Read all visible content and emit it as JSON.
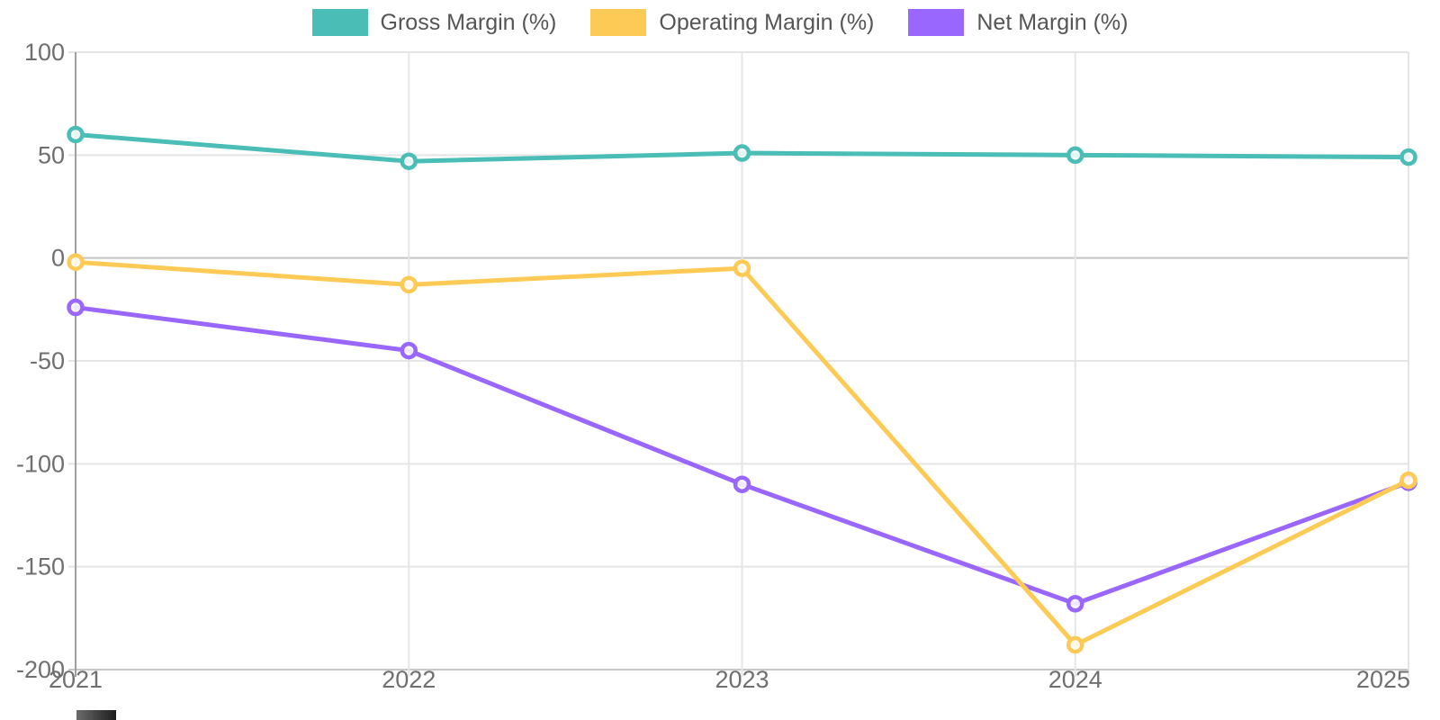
{
  "chart_data": {
    "type": "line",
    "x": [
      "2021",
      "2022",
      "2023",
      "2024",
      "2025"
    ],
    "series": [
      {
        "name": "Gross Margin (%)",
        "color": "#4bbdb7",
        "values": [
          60,
          47,
          51,
          50,
          49
        ]
      },
      {
        "name": "Operating Margin (%)",
        "color": "#fdcb55",
        "values": [
          -2,
          -13,
          -5,
          -188,
          -108
        ]
      },
      {
        "name": "Net Margin (%)",
        "color": "#9966fe",
        "values": [
          -24,
          -45,
          -110,
          -168,
          -109
        ]
      }
    ],
    "yticks": [
      100,
      50,
      0,
      -50,
      -100,
      -150,
      -200
    ],
    "ylim": [
      -200,
      100
    ],
    "xlabel": "",
    "ylabel": "",
    "title": "",
    "grid": true,
    "legend_position": "top-center",
    "colors": {
      "background": "#ffffff",
      "grid_line": "#e5e5e5",
      "zero_line": "#c3c3c3",
      "bottom_line": "#c6c6c6",
      "y_axis_line": "#9f9f9f",
      "tick_label": "#6f6f6f",
      "legend_text": "#555555",
      "marker_fill": "#ffffff"
    }
  }
}
